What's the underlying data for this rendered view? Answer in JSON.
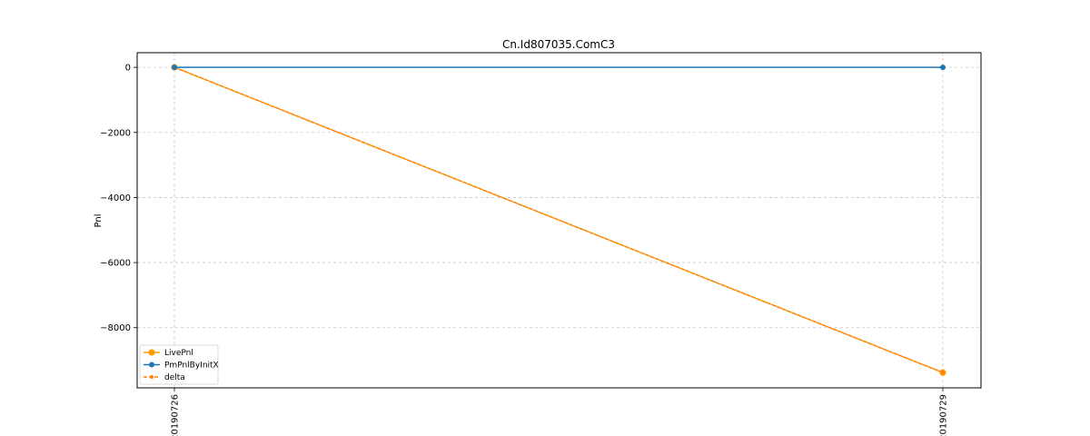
{
  "chart_data": {
    "type": "line",
    "title": "Cn.Id807035.ComC3",
    "xlabel": "",
    "ylabel": "Pnl",
    "categories": [
      "20190726",
      "20190729"
    ],
    "ylim": [
      -9850,
      450
    ],
    "yticks": [
      0,
      -2000,
      -4000,
      -6000,
      -8000
    ],
    "ytick_labels": [
      "0",
      "−2000",
      "−4000",
      "−6000",
      "−8000"
    ],
    "grid": true,
    "legend_position": "lower-left",
    "series": [
      {
        "name": "LivePnl",
        "values": [
          0,
          -9380
        ],
        "color": "#ff9e00",
        "style": "solid",
        "marker": "circle-large"
      },
      {
        "name": "PmPnlByInitX",
        "values": [
          0,
          0
        ],
        "color": "#1f77b4",
        "style": "solid",
        "marker": "circle"
      },
      {
        "name": "delta",
        "values": [
          0,
          -9380
        ],
        "color": "#ff7f0e",
        "style": "dashed",
        "marker": "circle-small"
      }
    ]
  }
}
